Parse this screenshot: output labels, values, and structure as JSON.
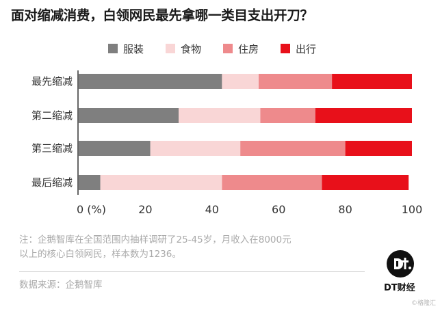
{
  "chart_data": {
    "type": "bar",
    "orientation": "horizontal",
    "stacked": true,
    "title": "面对缩减消费，白领网民最先拿哪一类目支出开刀？",
    "categories": [
      "最先缩减",
      "第二缩减",
      "第三缩减",
      "最后缩减"
    ],
    "series": [
      {
        "name": "服装",
        "color": "#7f7f7f",
        "values": [
          43,
          30,
          21.5,
          6.5
        ]
      },
      {
        "name": "食物",
        "color": "#f9d6d6",
        "values": [
          11,
          24.5,
          27,
          36.5
        ]
      },
      {
        "name": "住房",
        "color": "#ee8a8c",
        "values": [
          22,
          16.5,
          31.5,
          30
        ]
      },
      {
        "name": "出行",
        "color": "#e8101a",
        "values": [
          24,
          29,
          20,
          26
        ]
      }
    ],
    "xlim": [
      0,
      100
    ],
    "x_ticks": [
      "0 (%)",
      "20",
      "40",
      "60",
      "80",
      "100"
    ],
    "grid": false,
    "legend_position": "top"
  },
  "note_lines": [
    "注：企鹅智库在全国范围内抽样调研了25-45岁，月收入在8000元",
    "以上的核心白领网民，样本数为1236。"
  ],
  "source": "数据来源：企鹅智库",
  "logo": {
    "text": "DT财经"
  },
  "credit": "©格隆汇"
}
